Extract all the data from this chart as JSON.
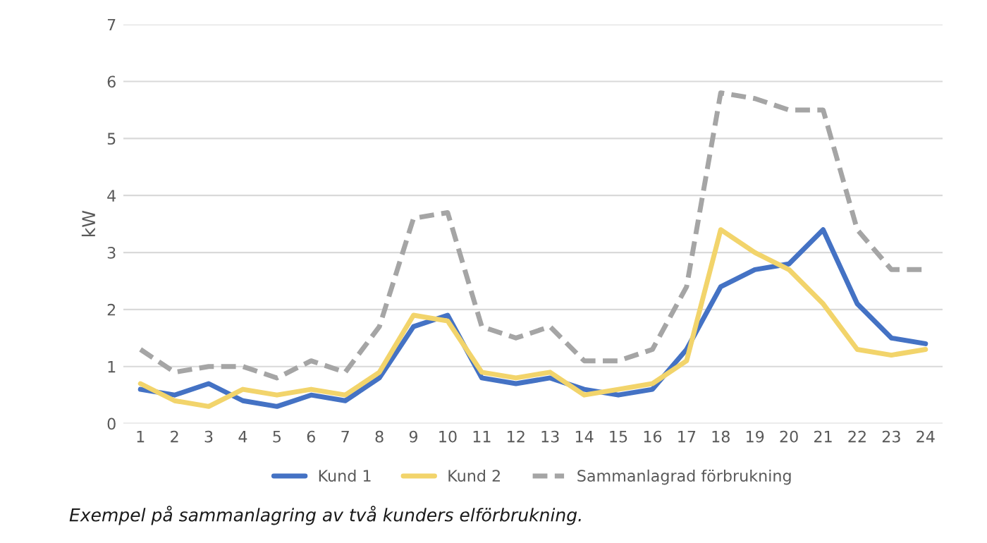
{
  "chart_data": {
    "type": "line",
    "ylabel": "kW",
    "categories": [
      "1",
      "2",
      "3",
      "4",
      "5",
      "6",
      "7",
      "8",
      "9",
      "10",
      "11",
      "12",
      "13",
      "14",
      "15",
      "16",
      "17",
      "18",
      "19",
      "20",
      "21",
      "22",
      "23",
      "24"
    ],
    "series": [
      {
        "name": "Kund 1",
        "color": "#4472c4",
        "line_style": "solid",
        "values": [
          0.6,
          0.5,
          0.7,
          0.4,
          0.3,
          0.5,
          0.4,
          0.8,
          1.7,
          1.9,
          0.8,
          0.7,
          0.8,
          0.6,
          0.5,
          0.6,
          1.3,
          2.4,
          2.7,
          2.8,
          3.4,
          2.1,
          1.5,
          1.4
        ]
      },
      {
        "name": "Kund 2",
        "color": "#f2d46b",
        "line_style": "solid",
        "values": [
          0.7,
          0.4,
          0.3,
          0.6,
          0.5,
          0.6,
          0.5,
          0.9,
          1.9,
          1.8,
          0.9,
          0.8,
          0.9,
          0.5,
          0.6,
          0.7,
          1.1,
          3.4,
          3.0,
          2.7,
          2.1,
          1.3,
          1.2,
          1.3
        ]
      },
      {
        "name": "Sammanlagrad förbrukning",
        "color": "#a5a5a5",
        "line_style": "dashed",
        "values": [
          1.3,
          0.9,
          1.0,
          1.0,
          0.8,
          1.1,
          0.9,
          1.7,
          3.6,
          3.7,
          1.7,
          1.5,
          1.7,
          1.1,
          1.1,
          1.3,
          2.4,
          5.8,
          5.7,
          5.5,
          5.5,
          3.4,
          2.7,
          2.7
        ]
      }
    ],
    "ylim": [
      0,
      7
    ],
    "yticks": [
      0,
      1,
      2,
      3,
      4,
      5,
      6,
      7
    ],
    "grid": "y",
    "legend": "bottom",
    "annotations": [
      "Exempel på sammanlagring av två kunders elförbrukning."
    ]
  }
}
